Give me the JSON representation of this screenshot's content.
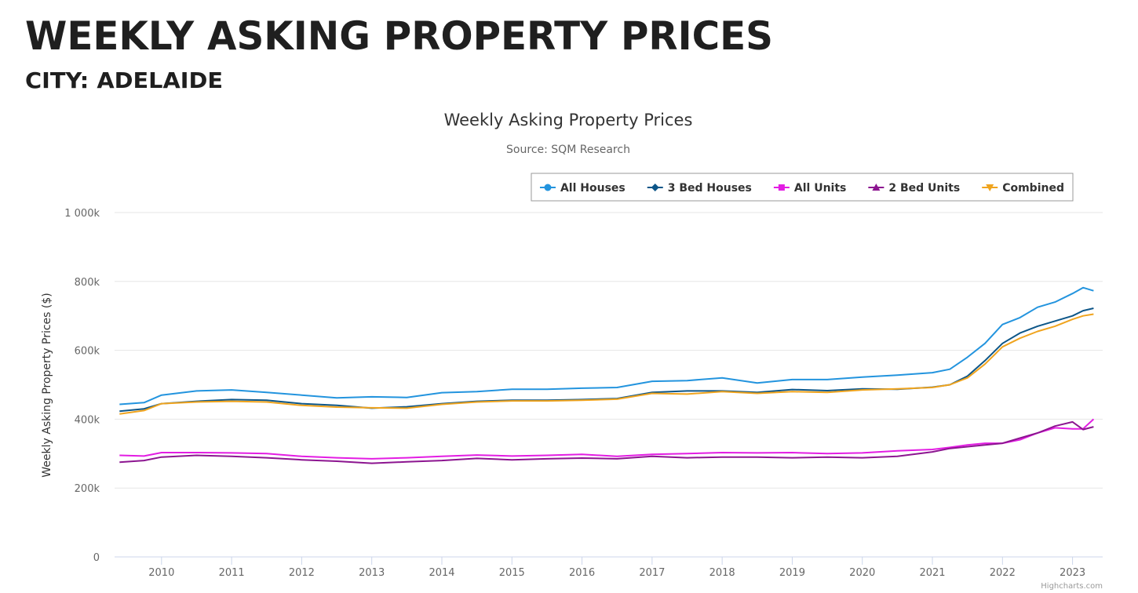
{
  "header": {
    "title": "WEEKLY ASKING PROPERTY PRICES",
    "subtitle": "CITY: ADELAIDE"
  },
  "chart_data": {
    "type": "line",
    "title": "Weekly Asking Property Prices",
    "subtitle": "Source: SQM Research",
    "y_label": "Weekly Asking Property Prices ($)",
    "credits": "Highcharts.com",
    "x": [
      2009.4,
      2009.75,
      2010,
      2010.5,
      2011,
      2011.5,
      2012,
      2012.5,
      2013,
      2013.5,
      2014,
      2014.5,
      2015,
      2015.5,
      2016,
      2016.5,
      2017,
      2017.5,
      2018,
      2018.5,
      2019,
      2019.5,
      2020,
      2020.5,
      2021,
      2021.25,
      2021.5,
      2021.75,
      2022,
      2022.25,
      2022.5,
      2022.75,
      2023,
      2023.15,
      2023.3
    ],
    "xlim": [
      2009.33,
      2023.43
    ],
    "xticks": [
      2010,
      2011,
      2012,
      2013,
      2014,
      2015,
      2016,
      2017,
      2018,
      2019,
      2020,
      2021,
      2022,
      2023
    ],
    "ylim": [
      0,
      1000000
    ],
    "yticks": [
      0,
      {
        "value": 200000,
        "label": "200k"
      },
      {
        "value": 400000,
        "label": "400k"
      },
      {
        "value": 600000,
        "label": "600k"
      },
      {
        "value": 800000,
        "label": "800k"
      },
      {
        "value": 1000000,
        "label": "1 000k"
      }
    ],
    "grid": true,
    "legend": "top-right",
    "series": [
      {
        "name": "All Houses",
        "color": "#2394de",
        "marker": "circle",
        "values": [
          443000,
          448000,
          470000,
          482000,
          485000,
          478000,
          470000,
          462000,
          465000,
          463000,
          477000,
          480000,
          487000,
          487000,
          490000,
          492000,
          510000,
          512000,
          520000,
          505000,
          515000,
          515000,
          522000,
          528000,
          535000,
          545000,
          580000,
          620000,
          675000,
          695000,
          725000,
          740000,
          765000,
          782000,
          773000
        ]
      },
      {
        "name": "3 Bed Houses",
        "color": "#0d5688",
        "marker": "diamond",
        "values": [
          423000,
          430000,
          445000,
          452000,
          457000,
          455000,
          445000,
          440000,
          432000,
          436000,
          445000,
          452000,
          455000,
          455000,
          457000,
          460000,
          478000,
          482000,
          482000,
          478000,
          486000,
          483000,
          488000,
          487000,
          493000,
          500000,
          525000,
          570000,
          620000,
          650000,
          670000,
          685000,
          700000,
          715000,
          722000
        ]
      },
      {
        "name": "All Units",
        "color": "#e31de3",
        "marker": "square",
        "values": [
          295000,
          293000,
          303000,
          303000,
          302000,
          300000,
          292000,
          288000,
          285000,
          288000,
          292000,
          296000,
          293000,
          295000,
          298000,
          292000,
          298000,
          300000,
          303000,
          302000,
          303000,
          300000,
          302000,
          308000,
          312000,
          318000,
          325000,
          330000,
          330000,
          340000,
          360000,
          375000,
          372000,
          372000,
          400000
        ]
      },
      {
        "name": "2 Bed Units",
        "color": "#8c1590",
        "marker": "triangle",
        "values": [
          275000,
          280000,
          290000,
          295000,
          292000,
          288000,
          282000,
          278000,
          272000,
          276000,
          280000,
          286000,
          282000,
          285000,
          287000,
          285000,
          292000,
          288000,
          290000,
          290000,
          288000,
          290000,
          288000,
          292000,
          305000,
          315000,
          320000,
          325000,
          330000,
          345000,
          360000,
          380000,
          392000,
          370000,
          378000
        ]
      },
      {
        "name": "Combined",
        "color": "#f0a41e",
        "marker": "triangle-down",
        "values": [
          415000,
          425000,
          445000,
          450000,
          452000,
          450000,
          440000,
          435000,
          433000,
          432000,
          443000,
          450000,
          453000,
          453000,
          455000,
          458000,
          475000,
          473000,
          480000,
          475000,
          480000,
          478000,
          485000,
          488000,
          492000,
          500000,
          520000,
          560000,
          610000,
          635000,
          655000,
          670000,
          690000,
          700000,
          705000
        ]
      }
    ]
  }
}
